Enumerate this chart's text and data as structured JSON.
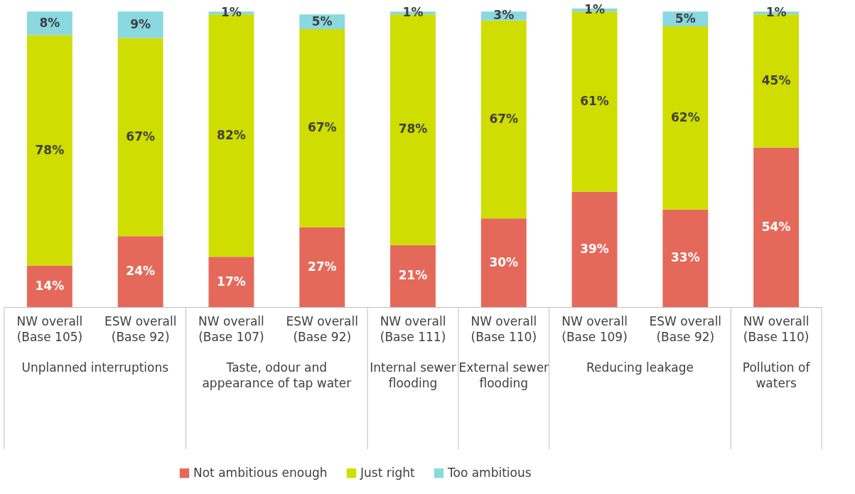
{
  "chart_data": {
    "type": "bar",
    "stacked": true,
    "legend": "bottom",
    "categories": [
      "NW overall (Base 105)",
      "ESW overall (Base 92)",
      "NW overall (Base 107)",
      "ESW overall (Base 92)",
      "NW overall (Base 111)",
      "NW overall (Base 110)",
      "NW overall (Base 109)",
      "ESW overall (Base 92)",
      "NW overall (Base 110)"
    ],
    "series": [
      {
        "name": "Not ambitious enough",
        "color": "#e5695a",
        "values": [
          14,
          24,
          17,
          27,
          21,
          30,
          39,
          33,
          54
        ],
        "value_labels": [
          "14%",
          "24%",
          "17%",
          "27%",
          "21%",
          "30%",
          "39%",
          "33%",
          "54%"
        ]
      },
      {
        "name": "Just right",
        "color": "#cfdd00",
        "values": [
          78,
          67,
          82,
          67,
          78,
          67,
          61,
          62,
          45
        ],
        "value_labels": [
          "78%",
          "67%",
          "82%",
          "67%",
          "78%",
          "67%",
          "61%",
          "62%",
          "45%"
        ]
      },
      {
        "name": "Too ambitious",
        "color": "#8ad8e0",
        "values": [
          8,
          9,
          1,
          5,
          1,
          3,
          1,
          5,
          1
        ],
        "value_labels": [
          "8%",
          "9%",
          "1%",
          "5%",
          "1%",
          "3%",
          "1%",
          "5%",
          "1%"
        ]
      }
    ],
    "annotations": [
      "Unplanned interruptions",
      "Taste, odour and appearance of tap water",
      "Internal sewer flooding",
      "External sewer flooding",
      "Reducing leakage",
      "Pollution of waters"
    ]
  }
}
